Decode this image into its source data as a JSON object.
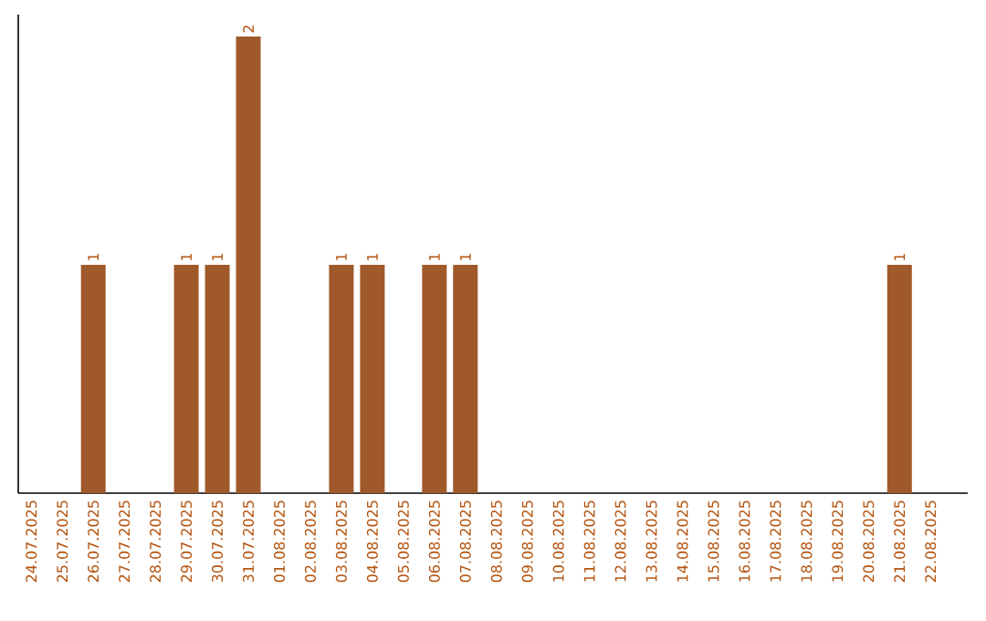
{
  "chart_data": {
    "type": "bar",
    "categories": [
      "24.07.2025",
      "25.07.2025",
      "26.07.2025",
      "27.07.2025",
      "28.07.2025",
      "29.07.2025",
      "30.07.2025",
      "31.07.2025",
      "01.08.2025",
      "02.08.2025",
      "03.08.2025",
      "04.08.2025",
      "05.08.2025",
      "06.08.2025",
      "07.08.2025",
      "08.08.2025",
      "09.08.2025",
      "10.08.2025",
      "11.08.2025",
      "12.08.2025",
      "13.08.2025",
      "14.08.2025",
      "15.08.2025",
      "16.08.2025",
      "17.08.2025",
      "18.08.2025",
      "19.08.2025",
      "20.08.2025",
      "21.08.2025",
      "22.08.2025"
    ],
    "values": [
      0,
      0,
      1,
      0,
      0,
      1,
      1,
      2,
      0,
      0,
      1,
      1,
      0,
      1,
      1,
      0,
      0,
      0,
      0,
      0,
      0,
      0,
      0,
      0,
      0,
      0,
      0,
      0,
      1,
      0
    ],
    "value_labels": [
      null,
      null,
      "1",
      null,
      null,
      "1",
      "1",
      "2",
      null,
      null,
      "1",
      "1",
      null,
      "1",
      "1",
      null,
      null,
      null,
      null,
      null,
      null,
      null,
      null,
      null,
      null,
      null,
      null,
      null,
      "1",
      null
    ],
    "color": "#a0592a",
    "tick_labels": "x"
  }
}
